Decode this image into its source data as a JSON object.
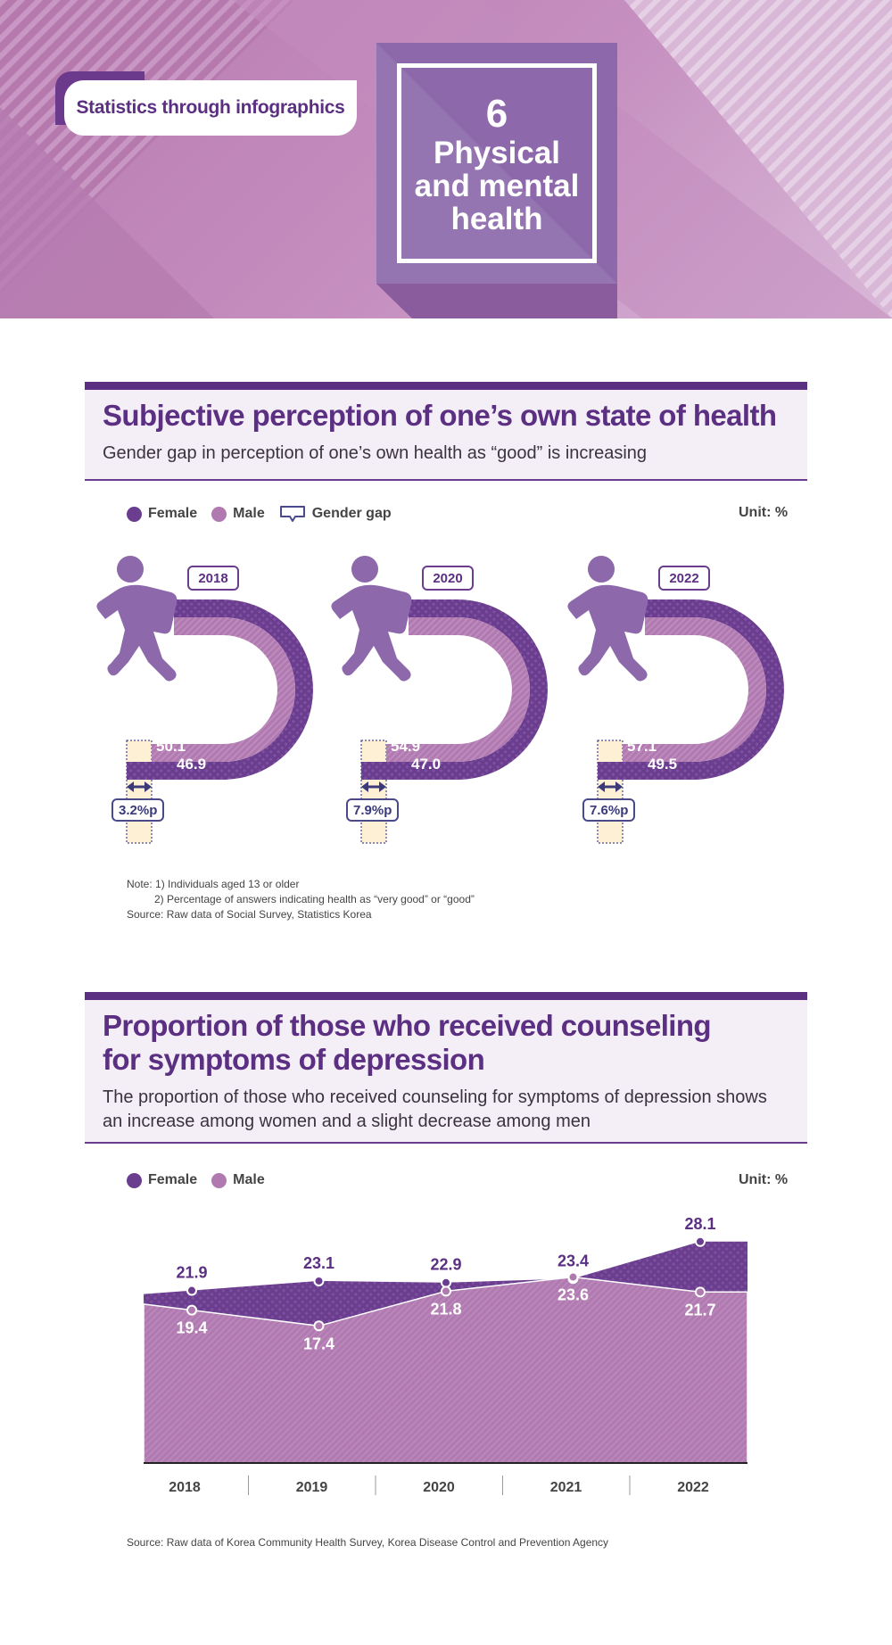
{
  "header": {
    "tag": "Statistics through infographics",
    "number": "6",
    "title": "Physical\nand mental\nhealth"
  },
  "colors": {
    "female": "#6a3d8f",
    "male": "#b07ab0",
    "accent": "#5b2f82",
    "gap": "#fdf0d5"
  },
  "section1": {
    "title": "Subjective perception of one’s own state of health",
    "subtitle": "Gender gap in perception of one’s own health as “good” is increasing",
    "legend": {
      "female": "Female",
      "male": "Male",
      "gap": "Gender gap"
    },
    "unit": "Unit: %",
    "years": [
      {
        "year": "2018",
        "female": "50.1",
        "male": "46.9",
        "gap": "3.2%p"
      },
      {
        "year": "2020",
        "female": "54.9",
        "male": "47.0",
        "gap": "7.9%p"
      },
      {
        "year": "2022",
        "female": "57.1",
        "male": "49.5",
        "gap": "7.6%p"
      }
    ],
    "notes": [
      "Note: 1) Individuals aged 13 or older",
      "2) Percentage of answers indicating health as “very good” or “good”",
      "Source: Raw data of Social Survey, Statistics Korea"
    ]
  },
  "section2": {
    "title": "Proportion of those who received counseling for symptoms of depression",
    "subtitle": "The proportion of those who received counseling for symptoms of depression shows an increase among women and a slight decrease among men",
    "legend": {
      "female": "Female",
      "male": "Male"
    },
    "unit": "Unit: %",
    "source": "Source: Raw data of Korea Community Health Survey, Korea Disease Control and Prevention Agency"
  },
  "chart_data": [
    {
      "type": "bar",
      "title": "Subjective perception of one’s own state of health",
      "categories": [
        "2018",
        "2020",
        "2022"
      ],
      "series": [
        {
          "name": "Female",
          "values": [
            50.1,
            54.9,
            57.1
          ]
        },
        {
          "name": "Male",
          "values": [
            46.9,
            47.0,
            49.5
          ]
        }
      ],
      "gap": [
        3.2,
        7.9,
        7.6
      ],
      "unit": "%"
    },
    {
      "type": "area",
      "title": "Proportion of those who received counseling for symptoms of depression",
      "categories": [
        "2018",
        "2019",
        "2020",
        "2021",
        "2022"
      ],
      "series": [
        {
          "name": "Female",
          "values": [
            21.9,
            23.1,
            22.9,
            23.4,
            28.1
          ]
        },
        {
          "name": "Male",
          "values": [
            19.4,
            17.4,
            21.8,
            23.6,
            21.7
          ]
        }
      ],
      "ylim": [
        0,
        30
      ],
      "unit": "%"
    }
  ]
}
